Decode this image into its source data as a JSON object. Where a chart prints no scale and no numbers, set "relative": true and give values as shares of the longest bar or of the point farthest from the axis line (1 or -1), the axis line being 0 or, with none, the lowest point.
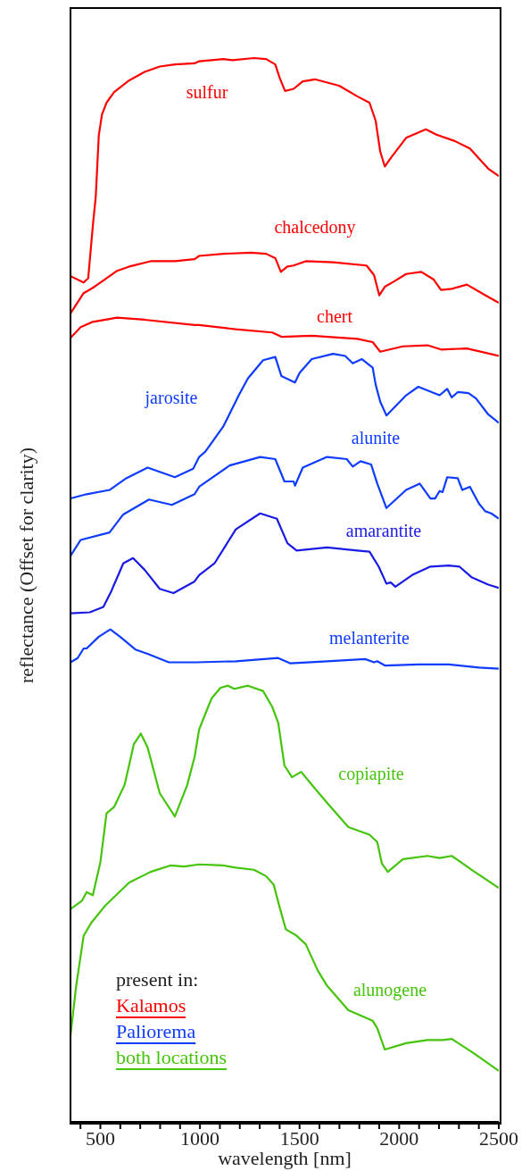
{
  "chart_data": {
    "type": "line",
    "relative": true,
    "xlabel": "wavelength [nm]",
    "ylabel": "reflectance (Offset for clarity)",
    "xlim": [
      350,
      2500
    ],
    "xticks": [
      {
        "value": 400,
        "label": null
      },
      500,
      {
        "value": 600,
        "label": null
      },
      {
        "value": 700,
        "label": null
      },
      {
        "value": 800,
        "label": null
      },
      {
        "value": 900,
        "label": null
      },
      1000,
      {
        "value": 1100,
        "label": null
      },
      {
        "value": 1200,
        "label": null
      },
      {
        "value": 1300,
        "label": null
      },
      {
        "value": 1400,
        "label": null
      },
      1500,
      {
        "value": 1600,
        "label": null
      },
      {
        "value": 1700,
        "label": null
      },
      {
        "value": 1800,
        "label": null
      },
      {
        "value": 1900,
        "label": null
      },
      2000,
      {
        "value": 2100,
        "label": null
      },
      {
        "value": 2200,
        "label": null
      },
      {
        "value": 2300,
        "label": null
      },
      {
        "value": 2400,
        "label": null
      },
      2500
    ],
    "annotations": [
      "present in:",
      "Kalamos",
      "Paliorema",
      "both locations"
    ],
    "series": [
      {
        "name": "sulfur",
        "color": "#ff0000",
        "x": [
          350,
          416,
          439,
          462,
          477,
          492,
          508,
          531,
          569,
          645,
          722,
          798,
          874,
          973,
          996,
          1118,
          1164,
          1271,
          1332,
          1378,
          1401,
          1427,
          1470,
          1516,
          1577,
          1699,
          1790,
          1851,
          1882,
          1905,
          1928,
          1958,
          2035,
          2134,
          2187,
          2279,
          2355,
          2447,
          2500
        ],
        "values": [
          0.795,
          0.789,
          0.793,
          0.842,
          0.87,
          0.927,
          0.947,
          0.958,
          0.968,
          0.979,
          0.987,
          0.992,
          0.994,
          0.995,
          0.997,
          0.999,
          0.998,
          1.0,
          0.999,
          0.994,
          0.981,
          0.969,
          0.971,
          0.978,
          0.98,
          0.974,
          0.964,
          0.958,
          0.941,
          0.912,
          0.898,
          0.906,
          0.925,
          0.933,
          0.928,
          0.922,
          0.915,
          0.896,
          0.889
        ]
      },
      {
        "name": "chalcedony",
        "color": "#ff0000",
        "x": [
          350,
          416,
          462,
          508,
          584,
          645,
          752,
          874,
          973,
          996,
          1118,
          1256,
          1332,
          1378,
          1406,
          1439,
          1470,
          1531,
          1668,
          1836,
          1874,
          1900,
          1928,
          1974,
          2035,
          2111,
          2172,
          2210,
          2264,
          2340,
          2432,
          2500
        ],
        "values": [
          0.76,
          0.779,
          0.784,
          0.79,
          0.8,
          0.804,
          0.809,
          0.809,
          0.811,
          0.814,
          0.816,
          0.817,
          0.816,
          0.812,
          0.799,
          0.804,
          0.805,
          0.809,
          0.808,
          0.805,
          0.796,
          0.777,
          0.785,
          0.79,
          0.797,
          0.799,
          0.792,
          0.782,
          0.783,
          0.787,
          0.777,
          0.77
        ]
      },
      {
        "name": "chert",
        "color": "#ff0000",
        "x": [
          350,
          401,
          462,
          584,
          722,
          973,
          996,
          1180,
          1363,
          1409,
          1561,
          1790,
          1867,
          1905,
          2019,
          2142,
          2210,
          2340,
          2500
        ],
        "values": [
          0.737,
          0.747,
          0.752,
          0.756,
          0.754,
          0.749,
          0.749,
          0.745,
          0.742,
          0.738,
          0.739,
          0.736,
          0.733,
          0.724,
          0.729,
          0.73,
          0.726,
          0.727,
          0.72
        ]
      },
      {
        "name": "jarosite",
        "color": "#0d3bff",
        "x": [
          350,
          431,
          546,
          630,
          737,
          874,
          966,
          996,
          1027,
          1118,
          1195,
          1241,
          1317,
          1378,
          1409,
          1432,
          1477,
          1500,
          1561,
          1668,
          1729,
          1767,
          1813,
          1867,
          1882,
          1905,
          1936,
          2035,
          2096,
          2203,
          2241,
          2264,
          2294,
          2348,
          2386,
          2447,
          2500
        ],
        "values": [
          0.586,
          0.59,
          0.594,
          0.605,
          0.615,
          0.606,
          0.614,
          0.625,
          0.63,
          0.654,
          0.683,
          0.699,
          0.716,
          0.719,
          0.701,
          0.699,
          0.695,
          0.704,
          0.717,
          0.722,
          0.72,
          0.713,
          0.717,
          0.709,
          0.693,
          0.677,
          0.664,
          0.683,
          0.691,
          0.683,
          0.689,
          0.681,
          0.686,
          0.685,
          0.68,
          0.665,
          0.657
        ]
      },
      {
        "name": "alunite",
        "color": "#0d3bff",
        "x": [
          350,
          401,
          546,
          615,
          744,
          859,
          973,
          996,
          1149,
          1302,
          1378,
          1424,
          1470,
          1477,
          1516,
          1638,
          1737,
          1767,
          1806,
          1859,
          1890,
          1936,
          2035,
          2103,
          2157,
          2180,
          2203,
          2218,
          2241,
          2294,
          2317,
          2355,
          2401,
          2432,
          2462,
          2500
        ],
        "values": [
          0.532,
          0.547,
          0.554,
          0.571,
          0.585,
          0.58,
          0.59,
          0.597,
          0.617,
          0.625,
          0.623,
          0.602,
          0.602,
          0.598,
          0.615,
          0.625,
          0.623,
          0.616,
          0.621,
          0.618,
          0.6,
          0.577,
          0.594,
          0.6,
          0.586,
          0.586,
          0.593,
          0.592,
          0.606,
          0.605,
          0.594,
          0.597,
          0.581,
          0.574,
          0.572,
          0.567
        ]
      },
      {
        "name": "amarantite",
        "color": "#1a1ae6",
        "x": [
          350,
          447,
          515,
          553,
          569,
          615,
          664,
          722,
          798,
          867,
          973,
          996,
          1073,
          1180,
          1302,
          1386,
          1439,
          1485,
          1638,
          1790,
          1851,
          1897,
          1936,
          1958,
          1981,
          2065,
          2157,
          2249,
          2302,
          2363,
          2447,
          2500
        ],
        "values": [
          0.478,
          0.479,
          0.484,
          0.498,
          0.505,
          0.525,
          0.53,
          0.519,
          0.501,
          0.497,
          0.508,
          0.514,
          0.525,
          0.557,
          0.572,
          0.567,
          0.544,
          0.537,
          0.54,
          0.537,
          0.536,
          0.522,
          0.506,
          0.507,
          0.503,
          0.514,
          0.522,
          0.523,
          0.522,
          0.512,
          0.505,
          0.502
        ]
      },
      {
        "name": "melanterite",
        "color": "#0d3bff",
        "x": [
          350,
          386,
          416,
          431,
          492,
          550,
          599,
          676,
          737,
          844,
          981,
          1180,
          1393,
          1454,
          1638,
          1829,
          1874,
          1890,
          1928,
          2096,
          2249,
          2401,
          2500
        ],
        "values": [
          0.432,
          0.436,
          0.445,
          0.445,
          0.456,
          0.463,
          0.456,
          0.444,
          0.44,
          0.432,
          0.432,
          0.433,
          0.436,
          0.431,
          0.433,
          0.435,
          0.432,
          0.433,
          0.429,
          0.43,
          0.43,
          0.427,
          0.426
        ]
      },
      {
        "name": "copiapite",
        "color": "#44c40a",
        "x": [
          350,
          408,
          431,
          462,
          500,
          531,
          569,
          622,
          668,
          703,
          737,
          798,
          874,
          935,
          973,
          996,
          1058,
          1103,
          1141,
          1172,
          1241,
          1317,
          1363,
          1393,
          1424,
          1462,
          1508,
          1561,
          1638,
          1745,
          1851,
          1890,
          1913,
          1943,
          2019,
          2142,
          2203,
          2264,
          2371,
          2500
        ],
        "values": [
          0.2,
          0.208,
          0.216,
          0.213,
          0.244,
          0.29,
          0.296,
          0.317,
          0.355,
          0.365,
          0.352,
          0.309,
          0.287,
          0.316,
          0.343,
          0.369,
          0.398,
          0.408,
          0.41,
          0.407,
          0.41,
          0.405,
          0.39,
          0.375,
          0.335,
          0.324,
          0.329,
          0.317,
          0.3,
          0.277,
          0.27,
          0.263,
          0.243,
          0.235,
          0.247,
          0.25,
          0.248,
          0.25,
          0.236,
          0.22
        ]
      },
      {
        "name": "alunogene",
        "color": "#44c40a",
        "x": [
          350,
          378,
          416,
          454,
          523,
          645,
          752,
          851,
          920,
          996,
          1118,
          1180,
          1271,
          1332,
          1370,
          1401,
          1431,
          1485,
          1531,
          1592,
          1638,
          1745,
          1867,
          1890,
          1928,
          2035,
          2142,
          2218,
          2264,
          2371,
          2500
        ],
        "values": [
          0.081,
          0.127,
          0.175,
          0.187,
          0.203,
          0.225,
          0.235,
          0.241,
          0.24,
          0.242,
          0.241,
          0.239,
          0.237,
          0.231,
          0.223,
          0.201,
          0.181,
          0.175,
          0.167,
          0.142,
          0.128,
          0.105,
          0.095,
          0.088,
          0.068,
          0.074,
          0.077,
          0.077,
          0.078,
          0.065,
          0.048
        ]
      }
    ]
  }
}
